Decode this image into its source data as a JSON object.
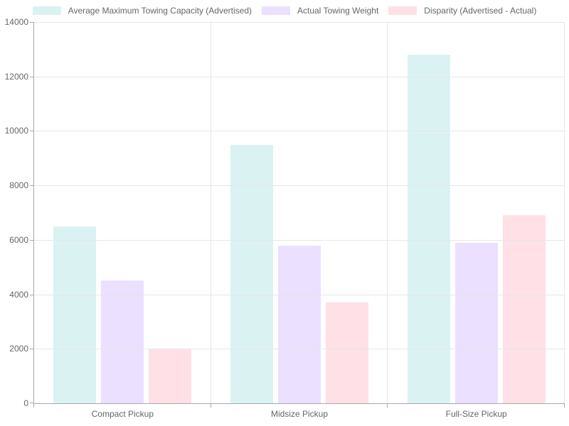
{
  "chart_data": {
    "type": "bar",
    "title": "",
    "categories": [
      "Compact Pickup",
      "Midsize Pickup",
      "Full-Size Pickup"
    ],
    "series": [
      {
        "name": "Average Maximum Towing Capacity (Advertised)",
        "color": "rgba(75,192,192,0.2)",
        "color_hex": "#dbf2f2",
        "values": [
          6500,
          9500,
          12800
        ]
      },
      {
        "name": "Actual Towing Weight",
        "color": "rgba(153,102,255,0.2)",
        "color_hex": "#eae0ff",
        "values": [
          4500,
          5800,
          5900
        ]
      },
      {
        "name": "Disparity (Advertised - Actual)",
        "color": "rgba(255,99,132,0.2)",
        "color_hex": "#ffe0e6",
        "values": [
          2000,
          3700,
          6900
        ]
      }
    ],
    "xlabel": "",
    "ylabel": "",
    "ylim": [
      0,
      14000
    ],
    "ytick_step": 2000,
    "ytick_labels": [
      "0",
      "2000",
      "4000",
      "6000",
      "8000",
      "10000",
      "12000",
      "14000"
    ],
    "grid": true,
    "legend_position": "top"
  },
  "style": {
    "text_color": "#666666",
    "axis_color": "#a8a8a8",
    "grid_color": "#e6e6e6",
    "background": "#ffffff"
  }
}
